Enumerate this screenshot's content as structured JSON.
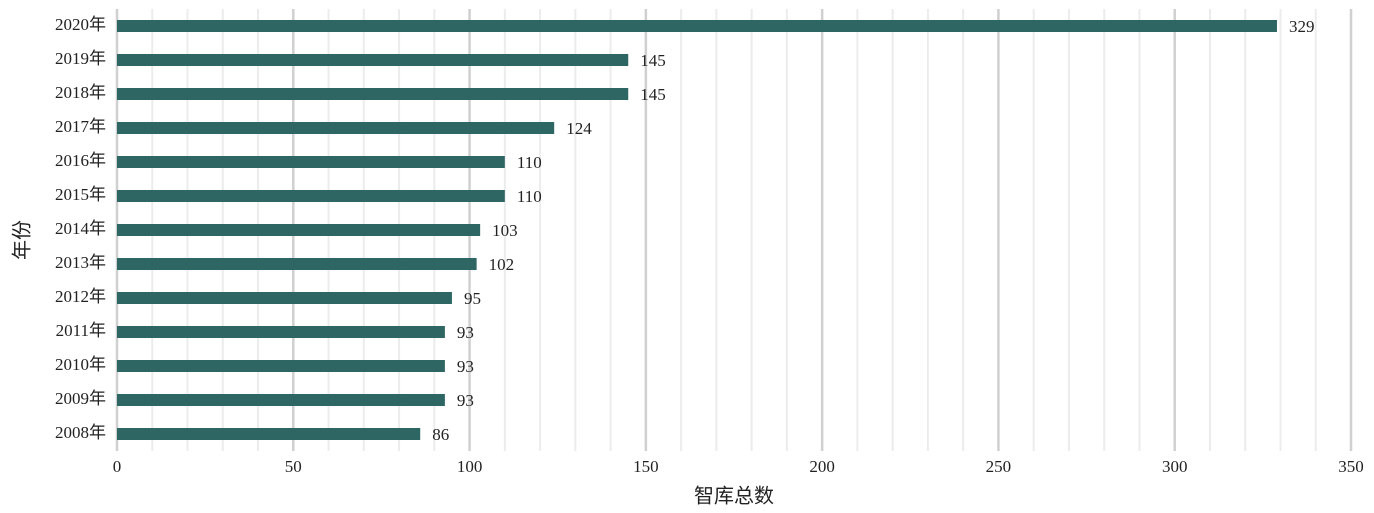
{
  "chart_data": {
    "type": "bar",
    "orientation": "horizontal",
    "categories": [
      "2020年",
      "2019年",
      "2018年",
      "2017年",
      "2016年",
      "2015年",
      "2014年",
      "2013年",
      "2012年",
      "2011年",
      "2010年",
      "2009年",
      "2008年"
    ],
    "values": [
      329,
      145,
      145,
      124,
      110,
      110,
      103,
      102,
      95,
      93,
      93,
      93,
      86
    ],
    "color": "#2e6664",
    "xlabel": "智库总数",
    "ylabel": "年份",
    "xlim": [
      0,
      350
    ],
    "xticks": [
      0,
      50,
      100,
      150,
      200,
      250,
      300,
      350
    ],
    "minor_xticks": [
      10,
      20,
      30,
      40,
      60,
      70,
      80,
      90,
      110,
      120,
      130,
      140,
      160,
      170,
      180,
      190,
      210,
      220,
      230,
      240,
      260,
      270,
      280,
      290,
      310,
      320,
      330,
      340
    ],
    "grid": true
  }
}
